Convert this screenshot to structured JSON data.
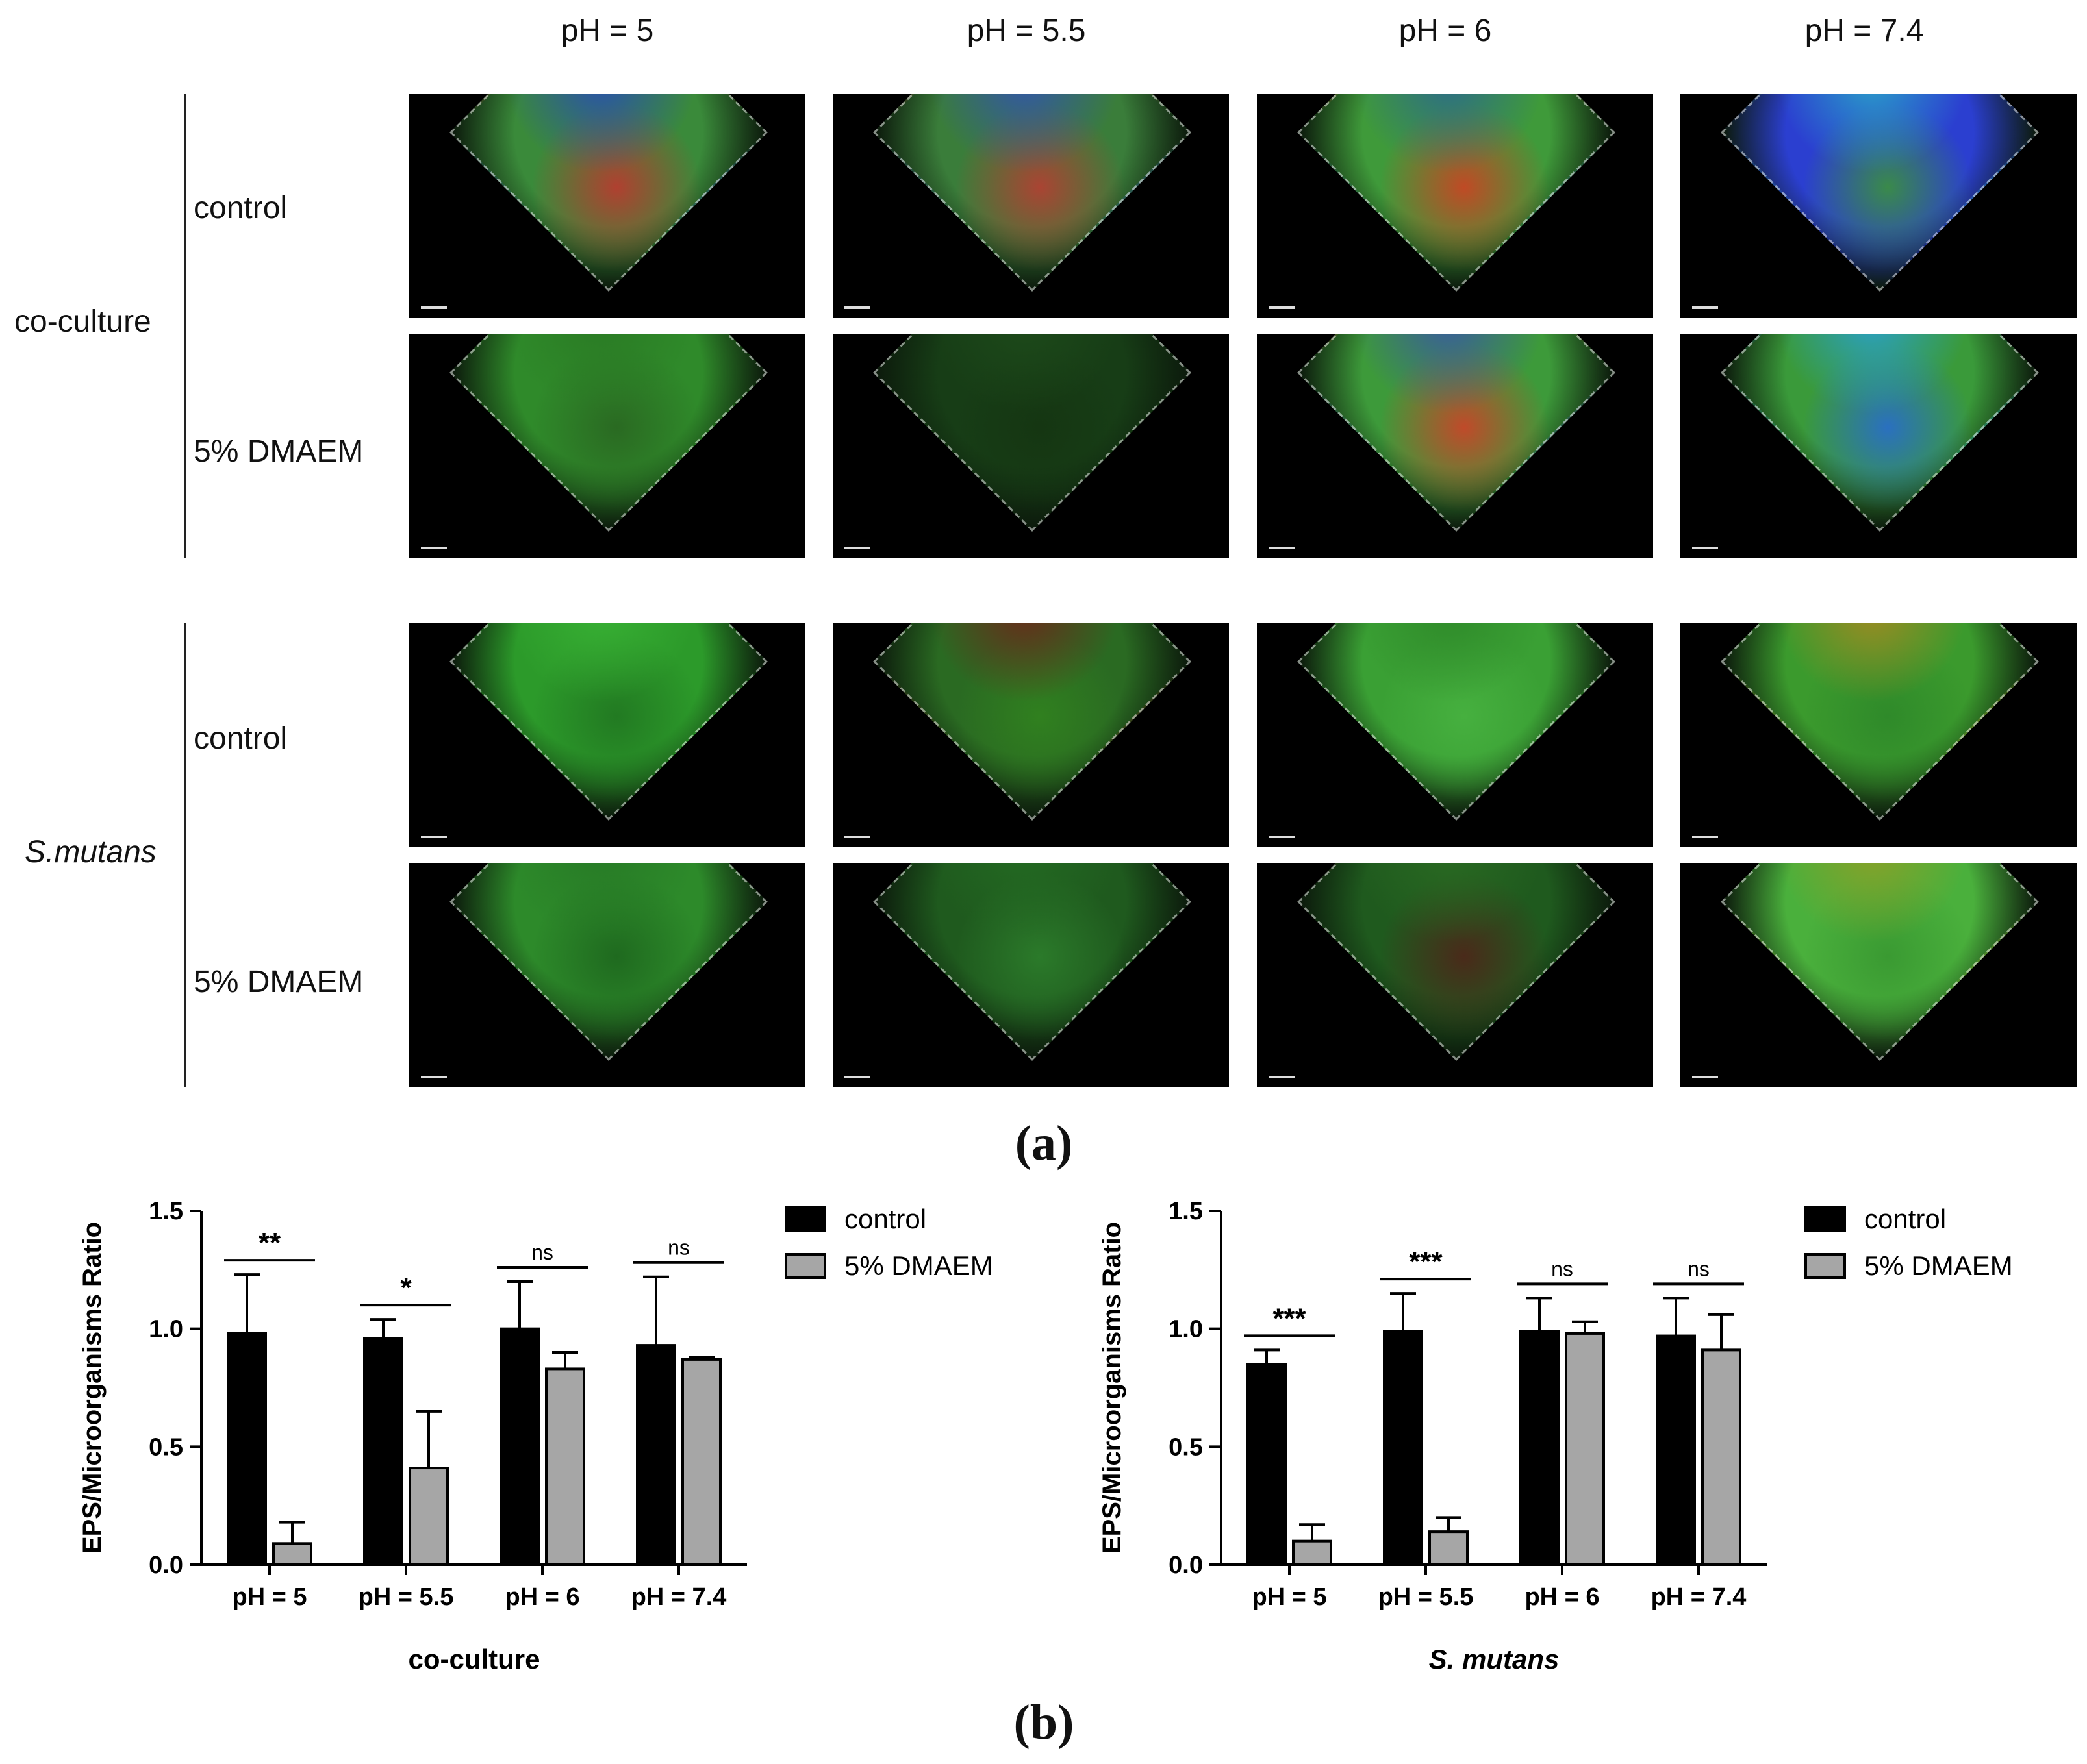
{
  "figure_a": {
    "caption": "(a)",
    "columns": [
      "pH = 5",
      "pH = 5.5",
      "pH = 6",
      "pH = 7.4"
    ],
    "groups": [
      {
        "label": "co-culture",
        "italic": false,
        "rows": [
          "control",
          "5% DMAEM"
        ]
      },
      {
        "label": "S.mutans",
        "italic": true,
        "rows": [
          "control",
          "5% DMAEM"
        ]
      }
    ],
    "panel_colors": [
      [
        [
          "#3a8a3a",
          "#2a4fb0",
          "#b04030"
        ],
        [
          "#3a7d3a",
          "#3355aa",
          "#aa4433"
        ],
        [
          "#3f9a3a",
          "#2d6b8a",
          "#c04a25"
        ],
        [
          "#2b3fd0",
          "#2aa0c8",
          "#3a8a4a"
        ]
      ],
      [
        [
          "#2f8a2a",
          "#2a7a24",
          "#2a6a22"
        ],
        [
          "#173d16",
          "#1d4a1a",
          "#153612"
        ],
        [
          "#3d9a3a",
          "#3a5aa0",
          "#c04a2a"
        ],
        [
          "#3a9a3a",
          "#2aa0c8",
          "#2a70c0"
        ]
      ],
      [
        [
          "#2c9a2a",
          "#38b034",
          "#227a22"
        ],
        [
          "#2a6a22",
          "#6a2a1a",
          "#30801f"
        ],
        [
          "#3aa034",
          "#2f8a2a",
          "#46b03f"
        ],
        [
          "#3b9a2d",
          "#a08a22",
          "#2f8a2a"
        ]
      ],
      [
        [
          "#2d8a2a",
          "#277a26",
          "#1f6a1f"
        ],
        [
          "#1f5a1e",
          "#236a22",
          "#2b7a2a"
        ],
        [
          "#1f5a1e",
          "#2a6a22",
          "#4a2a1a"
        ],
        [
          "#4ab03c",
          "#8aa028",
          "#3a9a32"
        ]
      ]
    ]
  },
  "figure_b": {
    "caption": "(b)",
    "legend": [
      "control",
      "5% DMAEM"
    ],
    "colors": {
      "control": "#000000",
      "treatment": "#a6a6a6"
    }
  },
  "chart_data": [
    {
      "type": "bar",
      "xlabel": "co-culture",
      "xlabel_italic": false,
      "ylabel": "EPS/Microorganisms Ratio",
      "categories": [
        "pH = 5",
        "pH = 5.5",
        "pH = 6",
        "pH = 7.4"
      ],
      "yticks": [
        "0.0",
        "0.5",
        "1.0",
        "1.5"
      ],
      "ylim": [
        0,
        1.5
      ],
      "series": [
        {
          "name": "control",
          "values": [
            0.98,
            0.96,
            1.0,
            0.93
          ],
          "errors": [
            0.25,
            0.08,
            0.2,
            0.29
          ]
        },
        {
          "name": "5% DMAEM",
          "values": [
            0.09,
            0.41,
            0.83,
            0.87
          ],
          "errors": [
            0.09,
            0.24,
            0.07,
            0.01
          ]
        }
      ],
      "significance": [
        "**",
        "*",
        "ns",
        "ns"
      ]
    },
    {
      "type": "bar",
      "xlabel": "S. mutans",
      "xlabel_italic": true,
      "ylabel": "EPS/Microorganisms Ratio",
      "categories": [
        "pH = 5",
        "pH = 5.5",
        "pH = 6",
        "pH = 7.4"
      ],
      "yticks": [
        "0.0",
        "0.5",
        "1.0",
        "1.5"
      ],
      "ylim": [
        0,
        1.5
      ],
      "series": [
        {
          "name": "control",
          "values": [
            0.85,
            0.99,
            0.99,
            0.97
          ],
          "errors": [
            0.06,
            0.16,
            0.14,
            0.16
          ]
        },
        {
          "name": "5% DMAEM",
          "values": [
            0.1,
            0.14,
            0.98,
            0.91
          ],
          "errors": [
            0.07,
            0.06,
            0.05,
            0.15
          ]
        }
      ],
      "significance": [
        "***",
        "***",
        "ns",
        "ns"
      ]
    }
  ]
}
